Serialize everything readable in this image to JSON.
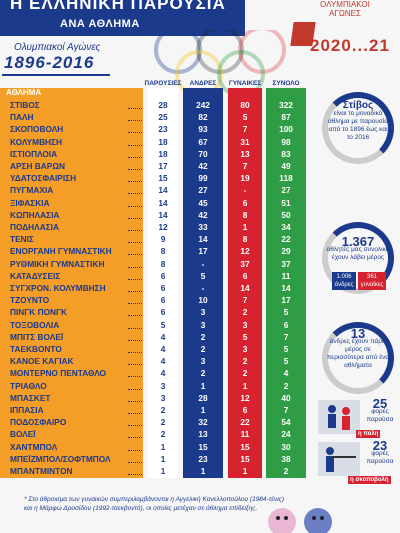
{
  "header": {
    "title": "Η ΕΛΛΗΝΙΚΗ ΠΑΡΟΥΣΙΑ",
    "subtitle": "ΑΝΑ ΑΘΛΗΜΑ"
  },
  "olympic_logo": {
    "games_text": "ΟΛΥΜΠΙΑΚΟΙ ΑΓΩΝΕΣ",
    "year_text": "2020...21"
  },
  "years": {
    "sub": "Ολυμπιακοί Αγώνες",
    "main": "1896-2016"
  },
  "columns": {
    "sport": "ΑΘΛΗΜΑ",
    "participations": "ΠΑΡΟΥΣΙΕΣ",
    "men": "ΑΝΔΡΕΣ",
    "women": "ΓΥΝΑΙΚΕΣ",
    "total": "ΣΥΝΟΛΟ"
  },
  "rows": [
    {
      "sport": "ΣΤΙΒΟΣ",
      "p": "28",
      "m": "242",
      "w": "80",
      "t": "322"
    },
    {
      "sport": "ΠΑΛΗ",
      "p": "25",
      "m": "82",
      "w": "5",
      "t": "87"
    },
    {
      "sport": "ΣΚΟΠΟΒΟΛΗ",
      "p": "23",
      "m": "93",
      "w": "7",
      "t": "100"
    },
    {
      "sport": "ΚΟΛΥΜΒΗΣΗ",
      "p": "18",
      "m": "67",
      "w": "31",
      "t": "98"
    },
    {
      "sport": "ΙΣΤΙΟΠΛΟΙΑ",
      "p": "18",
      "m": "70",
      "w": "13",
      "t": "83"
    },
    {
      "sport": "ΑΡΣΗ ΒΑΡΩΝ",
      "p": "17",
      "m": "42",
      "w": "7",
      "t": "49"
    },
    {
      "sport": "ΥΔΑΤΟΣΦΑΙΡΙΣΗ",
      "p": "15",
      "m": "99",
      "w": "19",
      "t": "118"
    },
    {
      "sport": "ΠΥΓΜΑΧΙΑ",
      "p": "14",
      "m": "27",
      "w": "-",
      "t": "27"
    },
    {
      "sport": "ΞΙΦΑΣΚΙΑ",
      "p": "14",
      "m": "45",
      "w": "6",
      "t": "51"
    },
    {
      "sport": "ΚΩΠΗΛΑΣΙΑ",
      "p": "14",
      "m": "42",
      "w": "8",
      "t": "50"
    },
    {
      "sport": "ΠΟΔΗΛΑΣΙΑ",
      "p": "12",
      "m": "33",
      "w": "1",
      "t": "34"
    },
    {
      "sport": "ΤΕΝΙΣ",
      "p": "9",
      "m": "14",
      "w": "8",
      "t": "22"
    },
    {
      "sport": "ΕΝΟΡΓΑΝΗ ΓΥΜΝΑΣΤΙΚΗ",
      "p": "8",
      "m": "17",
      "w": "12",
      "t": "29"
    },
    {
      "sport": "ΡΥΘΜΙΚΗ ΓΥΜΝΑΣΤΙΚΗ",
      "p": "8",
      "m": "-",
      "w": "37",
      "t": "37"
    },
    {
      "sport": "ΚΑΤΑΔΥΣΕΙΣ",
      "p": "6",
      "m": "5",
      "w": "6",
      "t": "11"
    },
    {
      "sport": "ΣΥΓΧΡΟΝ. ΚΟΛΥΜΒΗΣΗ",
      "p": "6",
      "m": "-",
      "w": "14",
      "t": "14"
    },
    {
      "sport": "ΤΖΟΥΝΤΟ",
      "p": "6",
      "m": "10",
      "w": "7",
      "t": "17"
    },
    {
      "sport": "ΠΙΝΓΚ ΠΟΝΓΚ",
      "p": "6",
      "m": "3",
      "w": "2",
      "t": "5"
    },
    {
      "sport": "ΤΟΞΟΒΟΛΙΑ",
      "p": "5",
      "m": "3",
      "w": "3",
      "t": "6"
    },
    {
      "sport": "ΜΠΙΤΣ ΒΟΛΕΪ",
      "p": "4",
      "m": "2",
      "w": "5",
      "t": "7"
    },
    {
      "sport": "ΤΑΕΚΒΟΝΤΟ",
      "p": "4",
      "m": "2",
      "w": "3",
      "t": "5"
    },
    {
      "sport": "ΚΑΝΟΕ ΚΑΓΙΑΚ",
      "p": "4",
      "m": "3",
      "w": "2",
      "t": "5"
    },
    {
      "sport": "ΜΟΝΤΕΡΝΟ ΠΕΝΤΑΘΛΟ",
      "p": "4",
      "m": "2",
      "w": "2",
      "t": "4"
    },
    {
      "sport": "ΤΡΙΑΘΛΟ",
      "p": "3",
      "m": "1",
      "w": "1",
      "t": "2"
    },
    {
      "sport": "ΜΠΑΣΚΕΤ",
      "p": "3",
      "m": "28",
      "w": "12",
      "t": "40"
    },
    {
      "sport": "ΙΠΠΑΣΙΑ",
      "p": "2",
      "m": "1",
      "w": "6",
      "t": "7"
    },
    {
      "sport": "ΠΟΔΟΣΦΑΙΡΟ",
      "p": "2",
      "m": "32",
      "w": "22",
      "t": "54"
    },
    {
      "sport": "ΒΟΛΕΪ",
      "p": "2",
      "m": "13",
      "w": "11",
      "t": "24"
    },
    {
      "sport": "ΧΑΝΤΜΠΟΛ",
      "p": "1",
      "m": "15",
      "w": "15",
      "t": "30"
    },
    {
      "sport": "ΜΠΕΪΖΜΠΟΛ/ΣΟΦΤΜΠΟΛ",
      "p": "1",
      "m": "23",
      "w": "15",
      "t": "38"
    },
    {
      "sport": "ΜΠΑΝΤΜΙΝΤΟΝ",
      "p": "1",
      "m": "1",
      "w": "1",
      "t": "2"
    }
  ],
  "side": {
    "athletics_title": "Στίβος",
    "athletics_text": "είναι το μοναδικό άθλημα με παρουσία από το 1896 έως και το 2016",
    "athletes_num": "1.367",
    "athletes_text": "αθλητές μας συνολικά έχουν λάβει μέρος",
    "men_num": "1.006",
    "men_label": "άνδρες",
    "women_num": "361",
    "women_label": "γυναίκες",
    "men13_num": "13",
    "men13_text": "άνδρες έχουν πάρει μέρος σε περισσότερα από ένα αθλήματα",
    "wrest_num": "25",
    "wrest_text": "φορές παρούσα",
    "wrest_badge": "η πάλη",
    "shoot_num": "23",
    "shoot_text": "φορές παρούσα",
    "shoot_badge": "η σκοποβολή"
  },
  "footnote": "* Στο άθροισμα των γυναικών συμπεριλαμβάνονται η Αγγελική Κανελλοπούλου (1984-τένις) και η Μάρφω Δροσίδου (1992-ταεκβοντό), οι οποίες μετέχαν σε άθλημα επίδειξης."
}
